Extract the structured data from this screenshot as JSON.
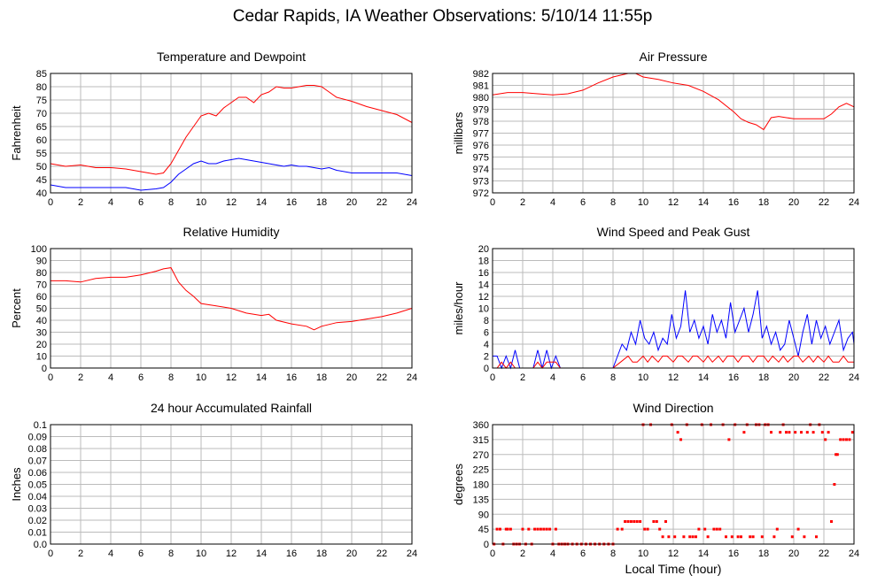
{
  "title": "Cedar Rapids, IA Weather Observations: 5/10/14 11:55p",
  "x_axis_label": "Local Time (hour)",
  "colors": {
    "red": "#ff0000",
    "blue": "#0000ff",
    "grid": "#bbbbbb",
    "frame": "#000000"
  },
  "chart_data": [
    {
      "id": "temp",
      "type": "line",
      "title": "Temperature and Dewpoint",
      "ylabel": "Fahrenheit",
      "xlim": [
        0,
        24
      ],
      "ylim": [
        40,
        85
      ],
      "xticks": [
        0,
        2,
        4,
        6,
        8,
        10,
        12,
        14,
        16,
        18,
        20,
        22,
        24
      ],
      "yticks": [
        40,
        45,
        50,
        55,
        60,
        65,
        70,
        75,
        80,
        85
      ],
      "grid": true,
      "series": [
        {
          "color": "#ff0000",
          "x": [
            0,
            1,
            2,
            3,
            4,
            5,
            6,
            7,
            7.5,
            8,
            8.5,
            9,
            9.5,
            10,
            10.5,
            11,
            11.5,
            12,
            12.5,
            13,
            13.5,
            14,
            14.5,
            15,
            15.5,
            16,
            16.5,
            17,
            17.5,
            18,
            18.5,
            19,
            20,
            21,
            22,
            23,
            24
          ],
          "y": [
            51,
            50,
            50.5,
            49.5,
            49.5,
            49,
            48,
            47,
            47.5,
            51,
            56,
            61,
            65,
            69,
            70,
            69,
            72,
            74,
            76,
            76,
            74,
            77,
            78,
            80,
            79.5,
            79.5,
            80,
            80.5,
            80.5,
            80,
            78,
            76,
            74.5,
            72.5,
            71,
            69.5,
            66.5
          ]
        },
        {
          "color": "#0000ff",
          "x": [
            0,
            1,
            2,
            3,
            4,
            5,
            6,
            7,
            7.5,
            8,
            8.5,
            9,
            9.5,
            10,
            10.5,
            11,
            11.5,
            12,
            12.5,
            13,
            13.5,
            14,
            14.5,
            15,
            15.5,
            16,
            16.5,
            17,
            17.5,
            18,
            18.5,
            19,
            20,
            21,
            22,
            23,
            24
          ],
          "y": [
            43,
            42,
            42,
            42,
            42,
            42,
            41,
            41.5,
            42,
            44,
            47,
            49,
            51,
            52,
            51,
            51,
            52,
            52.5,
            53,
            52.5,
            52,
            51.5,
            51,
            50.5,
            50,
            50.5,
            50,
            50,
            49.5,
            49,
            49.5,
            48.5,
            47.5,
            47.5,
            47.5,
            47.5,
            46.5
          ]
        }
      ]
    },
    {
      "id": "pressure",
      "type": "line",
      "title": "Air Pressure",
      "ylabel": "millibars",
      "xlim": [
        0,
        24
      ],
      "ylim": [
        972,
        982
      ],
      "xticks": [
        0,
        2,
        4,
        6,
        8,
        10,
        12,
        14,
        16,
        18,
        20,
        22,
        24
      ],
      "yticks": [
        972,
        973,
        974,
        975,
        976,
        977,
        978,
        979,
        980,
        981,
        982
      ],
      "grid": true,
      "series": [
        {
          "color": "#ff0000",
          "x": [
            0,
            1,
            2,
            3,
            4,
            5,
            6,
            7,
            8,
            9,
            9.5,
            10,
            11,
            12,
            13,
            14,
            15,
            16,
            16.5,
            17,
            17.5,
            18,
            18.5,
            19,
            20,
            21,
            22,
            22.5,
            23,
            23.5,
            24
          ],
          "y": [
            980.2,
            980.4,
            980.4,
            980.3,
            980.2,
            980.3,
            980.6,
            981.2,
            981.7,
            982.0,
            982.0,
            981.7,
            981.5,
            981.2,
            981.0,
            980.5,
            979.8,
            978.8,
            978.2,
            977.9,
            977.7,
            977.3,
            978.3,
            978.4,
            978.2,
            978.2,
            978.2,
            978.6,
            979.2,
            979.5,
            979.2
          ]
        }
      ]
    },
    {
      "id": "humidity",
      "type": "line",
      "title": "Relative Humidity",
      "ylabel": "Percent",
      "xlim": [
        0,
        24
      ],
      "ylim": [
        0,
        100
      ],
      "xticks": [
        0,
        2,
        4,
        6,
        8,
        10,
        12,
        14,
        16,
        18,
        20,
        22,
        24
      ],
      "yticks": [
        0,
        10,
        20,
        30,
        40,
        50,
        60,
        70,
        80,
        90,
        100
      ],
      "grid": true,
      "series": [
        {
          "color": "#ff0000",
          "x": [
            0,
            1,
            2,
            3,
            4,
            5,
            6,
            7,
            7.5,
            8,
            8.5,
            9,
            9.5,
            10,
            11,
            12,
            13,
            14,
            14.5,
            15,
            16,
            17,
            17.5,
            18,
            19,
            20,
            21,
            22,
            23,
            24
          ],
          "y": [
            73,
            73,
            72,
            75,
            76,
            76,
            78,
            81,
            83,
            84,
            72,
            65,
            60,
            54,
            52,
            50,
            46,
            44,
            45,
            40,
            37,
            35,
            32,
            35,
            38,
            39,
            41,
            43,
            46,
            50
          ]
        }
      ]
    },
    {
      "id": "wind",
      "type": "line",
      "title": "Wind Speed and Peak Gust",
      "ylabel": "miles/hour",
      "xlim": [
        0,
        24
      ],
      "ylim": [
        0,
        20
      ],
      "xticks": [
        0,
        2,
        4,
        6,
        8,
        10,
        12,
        14,
        16,
        18,
        20,
        22,
        24
      ],
      "yticks": [
        0,
        2,
        4,
        6,
        8,
        10,
        12,
        14,
        16,
        18,
        20
      ],
      "grid": true,
      "series": [
        {
          "color": "#0000ff",
          "x": [
            0,
            0.3,
            0.6,
            0.9,
            1.2,
            1.5,
            1.8,
            2.1,
            2.4,
            2.7,
            3.0,
            3.3,
            3.6,
            3.9,
            4.2,
            4.5,
            5.0,
            6.0,
            7.0,
            8.0,
            8.3,
            8.6,
            8.9,
            9.2,
            9.5,
            9.8,
            10.1,
            10.4,
            10.7,
            11.0,
            11.3,
            11.6,
            11.9,
            12.2,
            12.5,
            12.8,
            13.1,
            13.4,
            13.7,
            14.0,
            14.3,
            14.6,
            14.9,
            15.2,
            15.5,
            15.8,
            16.1,
            16.4,
            16.7,
            17.0,
            17.3,
            17.6,
            17.9,
            18.2,
            18.5,
            18.8,
            19.1,
            19.4,
            19.7,
            20.0,
            20.3,
            20.6,
            20.9,
            21.2,
            21.5,
            21.8,
            22.1,
            22.4,
            22.7,
            23.0,
            23.3,
            23.6,
            23.9,
            24.0
          ],
          "y": [
            2,
            2,
            0,
            2,
            0,
            3,
            0,
            0,
            0,
            0,
            3,
            0,
            3,
            0,
            2,
            0,
            0,
            0,
            0,
            0,
            2,
            4,
            3,
            6,
            4,
            8,
            5,
            4,
            6,
            3,
            5,
            4,
            9,
            5,
            7,
            13,
            6,
            8,
            5,
            7,
            4,
            9,
            6,
            8,
            5,
            11,
            6,
            8,
            10,
            6,
            9,
            13,
            5,
            7,
            4,
            6,
            3,
            4,
            8,
            5,
            2,
            6,
            9,
            4,
            8,
            5,
            7,
            4,
            6,
            8,
            3,
            5,
            6,
            4
          ]
        },
        {
          "color": "#ff0000",
          "x": [
            0,
            0.3,
            0.6,
            0.9,
            1.2,
            1.5,
            2.0,
            2.7,
            3.0,
            3.3,
            3.6,
            4.2,
            4.5,
            5.0,
            6.0,
            7.0,
            8.0,
            8.5,
            9.0,
            9.3,
            9.6,
            10.0,
            10.3,
            10.6,
            11.0,
            11.3,
            11.6,
            12.0,
            12.3,
            12.6,
            13.0,
            13.3,
            13.6,
            14.0,
            14.3,
            14.6,
            15.0,
            15.3,
            15.6,
            16.0,
            16.3,
            16.6,
            17.0,
            17.3,
            17.6,
            18.0,
            18.3,
            18.6,
            19.0,
            19.3,
            19.6,
            20.0,
            20.3,
            20.6,
            21.0,
            21.3,
            21.6,
            22.0,
            22.3,
            22.6,
            23.0,
            23.3,
            23.6,
            24.0
          ],
          "y": [
            0,
            0,
            1,
            0,
            1,
            0,
            0,
            0,
            1,
            0,
            1,
            1,
            0,
            0,
            0,
            0,
            0,
            1,
            2,
            1,
            1,
            2,
            1,
            2,
            1,
            2,
            2,
            1,
            2,
            2,
            1,
            2,
            2,
            1,
            2,
            1,
            2,
            1,
            2,
            2,
            1,
            2,
            2,
            1,
            2,
            2,
            1,
            2,
            1,
            2,
            1,
            2,
            2,
            1,
            2,
            1,
            2,
            1,
            2,
            1,
            1,
            2,
            1,
            1
          ]
        }
      ]
    },
    {
      "id": "rain",
      "type": "line",
      "title": "24 hour Accumulated Rainfall",
      "ylabel": "Inches",
      "xlim": [
        0,
        24
      ],
      "ylim": [
        0,
        0.1
      ],
      "xticks": [
        0,
        2,
        4,
        6,
        8,
        10,
        12,
        14,
        16,
        18,
        20,
        22,
        24
      ],
      "yticks": [
        "0.0",
        "0.01",
        "0.02",
        "0.03",
        "0.04",
        "0.05",
        "0.06",
        "0.07",
        "0.08",
        "0.09",
        "0.1"
      ],
      "grid": true,
      "series": [
        {
          "color": "#ff0000",
          "x": [
            0,
            24
          ],
          "y": [
            0,
            0
          ]
        }
      ]
    },
    {
      "id": "winddir",
      "type": "scatter",
      "title": "Wind Direction",
      "ylabel": "degrees",
      "xlim": [
        0,
        24
      ],
      "ylim": [
        0,
        360
      ],
      "xticks": [
        0,
        2,
        4,
        6,
        8,
        10,
        12,
        14,
        16,
        18,
        20,
        22,
        24
      ],
      "yticks": [
        0,
        45,
        90,
        135,
        180,
        225,
        270,
        315,
        360
      ],
      "grid": true,
      "series": [
        {
          "color": "#ff0000",
          "x": [
            0.1,
            0.3,
            0.5,
            0.7,
            0.9,
            1.0,
            1.2,
            1.4,
            1.6,
            1.8,
            2.0,
            2.2,
            2.4,
            2.6,
            2.8,
            3.0,
            3.2,
            3.4,
            3.6,
            3.8,
            4.0,
            4.2,
            4.4,
            4.6,
            4.8,
            5.0,
            5.3,
            5.6,
            5.9,
            6.2,
            6.5,
            6.8,
            7.1,
            7.4,
            7.7,
            8.0,
            8.3,
            8.6,
            8.8,
            9.0,
            9.2,
            9.4,
            9.6,
            9.8,
            10.0,
            10.1,
            10.3,
            10.5,
            10.7,
            10.9,
            11.1,
            11.3,
            11.5,
            11.7,
            11.9,
            12.1,
            12.3,
            12.5,
            12.7,
            12.9,
            13.1,
            13.3,
            13.5,
            13.7,
            13.9,
            14.1,
            14.3,
            14.5,
            14.7,
            14.9,
            15.1,
            15.3,
            15.5,
            15.7,
            15.9,
            16.1,
            16.3,
            16.5,
            16.7,
            16.9,
            17.1,
            17.3,
            17.5,
            17.7,
            17.9,
            18.1,
            18.3,
            18.5,
            18.7,
            18.9,
            19.1,
            19.3,
            19.5,
            19.7,
            19.9,
            20.1,
            20.3,
            20.5,
            20.7,
            20.9,
            21.1,
            21.3,
            21.5,
            21.7,
            21.9,
            22.1,
            22.3,
            22.5,
            22.7,
            22.8,
            22.9,
            23.1,
            23.3,
            23.5,
            23.7,
            23.9
          ],
          "y": [
            0,
            45,
            45,
            0,
            45,
            45,
            45,
            0,
            0,
            0,
            45,
            0,
            45,
            0,
            45,
            45,
            45,
            45,
            45,
            45,
            0,
            45,
            0,
            0,
            0,
            0,
            0,
            0,
            0,
            0,
            0,
            0,
            0,
            0,
            0,
            0,
            45,
            45,
            68,
            68,
            68,
            68,
            68,
            68,
            360,
            45,
            45,
            360,
            68,
            68,
            45,
            22,
            68,
            22,
            360,
            22,
            337,
            315,
            22,
            360,
            22,
            22,
            22,
            45,
            360,
            45,
            22,
            360,
            45,
            45,
            45,
            360,
            22,
            315,
            22,
            360,
            22,
            22,
            337,
            360,
            22,
            22,
            360,
            360,
            22,
            360,
            360,
            337,
            22,
            45,
            337,
            360,
            337,
            337,
            22,
            337,
            45,
            337,
            22,
            337,
            360,
            337,
            22,
            360,
            337,
            315,
            337,
            68,
            180,
            270,
            270,
            315,
            315,
            315,
            315,
            337
          ]
        }
      ]
    }
  ]
}
